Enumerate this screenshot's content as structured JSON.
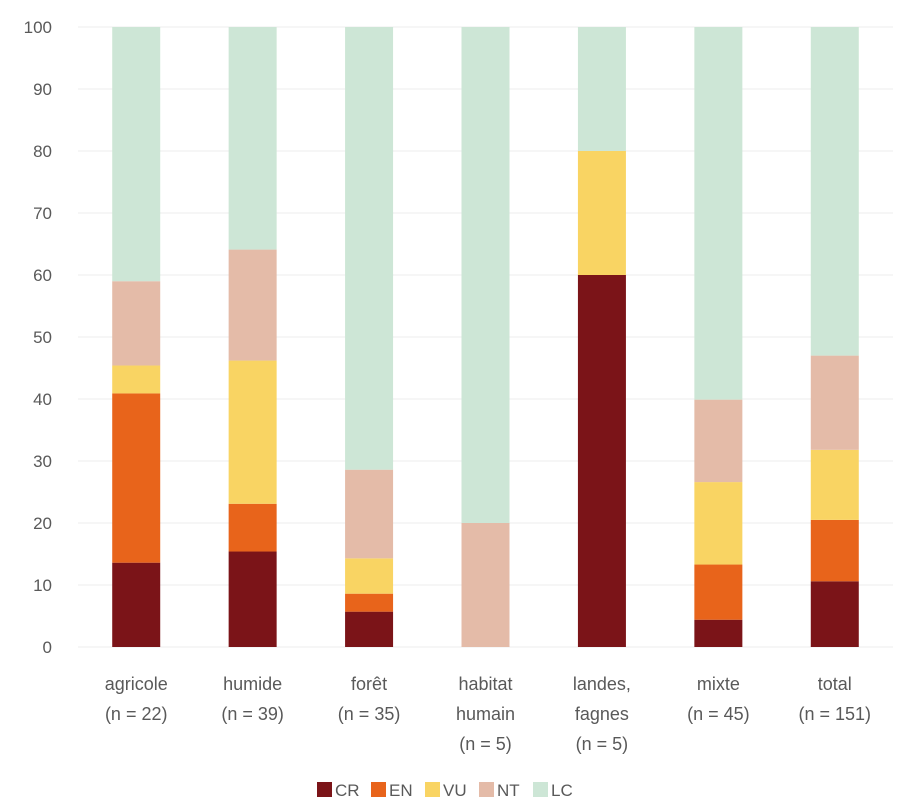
{
  "chart_data": {
    "type": "bar",
    "stacked": true,
    "ylim": [
      0,
      100
    ],
    "yticks": [
      0,
      10,
      20,
      30,
      40,
      50,
      60,
      70,
      80,
      90,
      100
    ],
    "grid": true,
    "legend_position": "bottom",
    "categories": [
      [
        "agricole",
        "(n = 22)"
      ],
      [
        "humide",
        "(n = 39)"
      ],
      [
        "forêt",
        "(n = 35)"
      ],
      [
        "habitat",
        "humain",
        "(n = 5)"
      ],
      [
        "landes,",
        "fagnes",
        "(n = 5)"
      ],
      [
        "mixte",
        "(n = 45)"
      ],
      [
        "total",
        "(n = 151)"
      ]
    ],
    "series": [
      {
        "name": "CR",
        "color": "#7b1418",
        "values": [
          13.6,
          15.4,
          5.7,
          0,
          60,
          4.4,
          10.6
        ]
      },
      {
        "name": "EN",
        "color": "#e8641b",
        "values": [
          27.3,
          7.7,
          2.9,
          0,
          0,
          8.9,
          9.9
        ]
      },
      {
        "name": "VU",
        "color": "#f9d463",
        "values": [
          4.5,
          23.1,
          5.7,
          0,
          20,
          13.3,
          11.3
        ]
      },
      {
        "name": "NT",
        "color": "#e4bba8",
        "values": [
          13.6,
          17.9,
          14.3,
          20,
          0,
          13.3,
          15.2
        ]
      },
      {
        "name": "LC",
        "color": "#cde6d6",
        "values": [
          41.0,
          35.9,
          71.4,
          80,
          20,
          60.1,
          53.0
        ]
      }
    ]
  }
}
